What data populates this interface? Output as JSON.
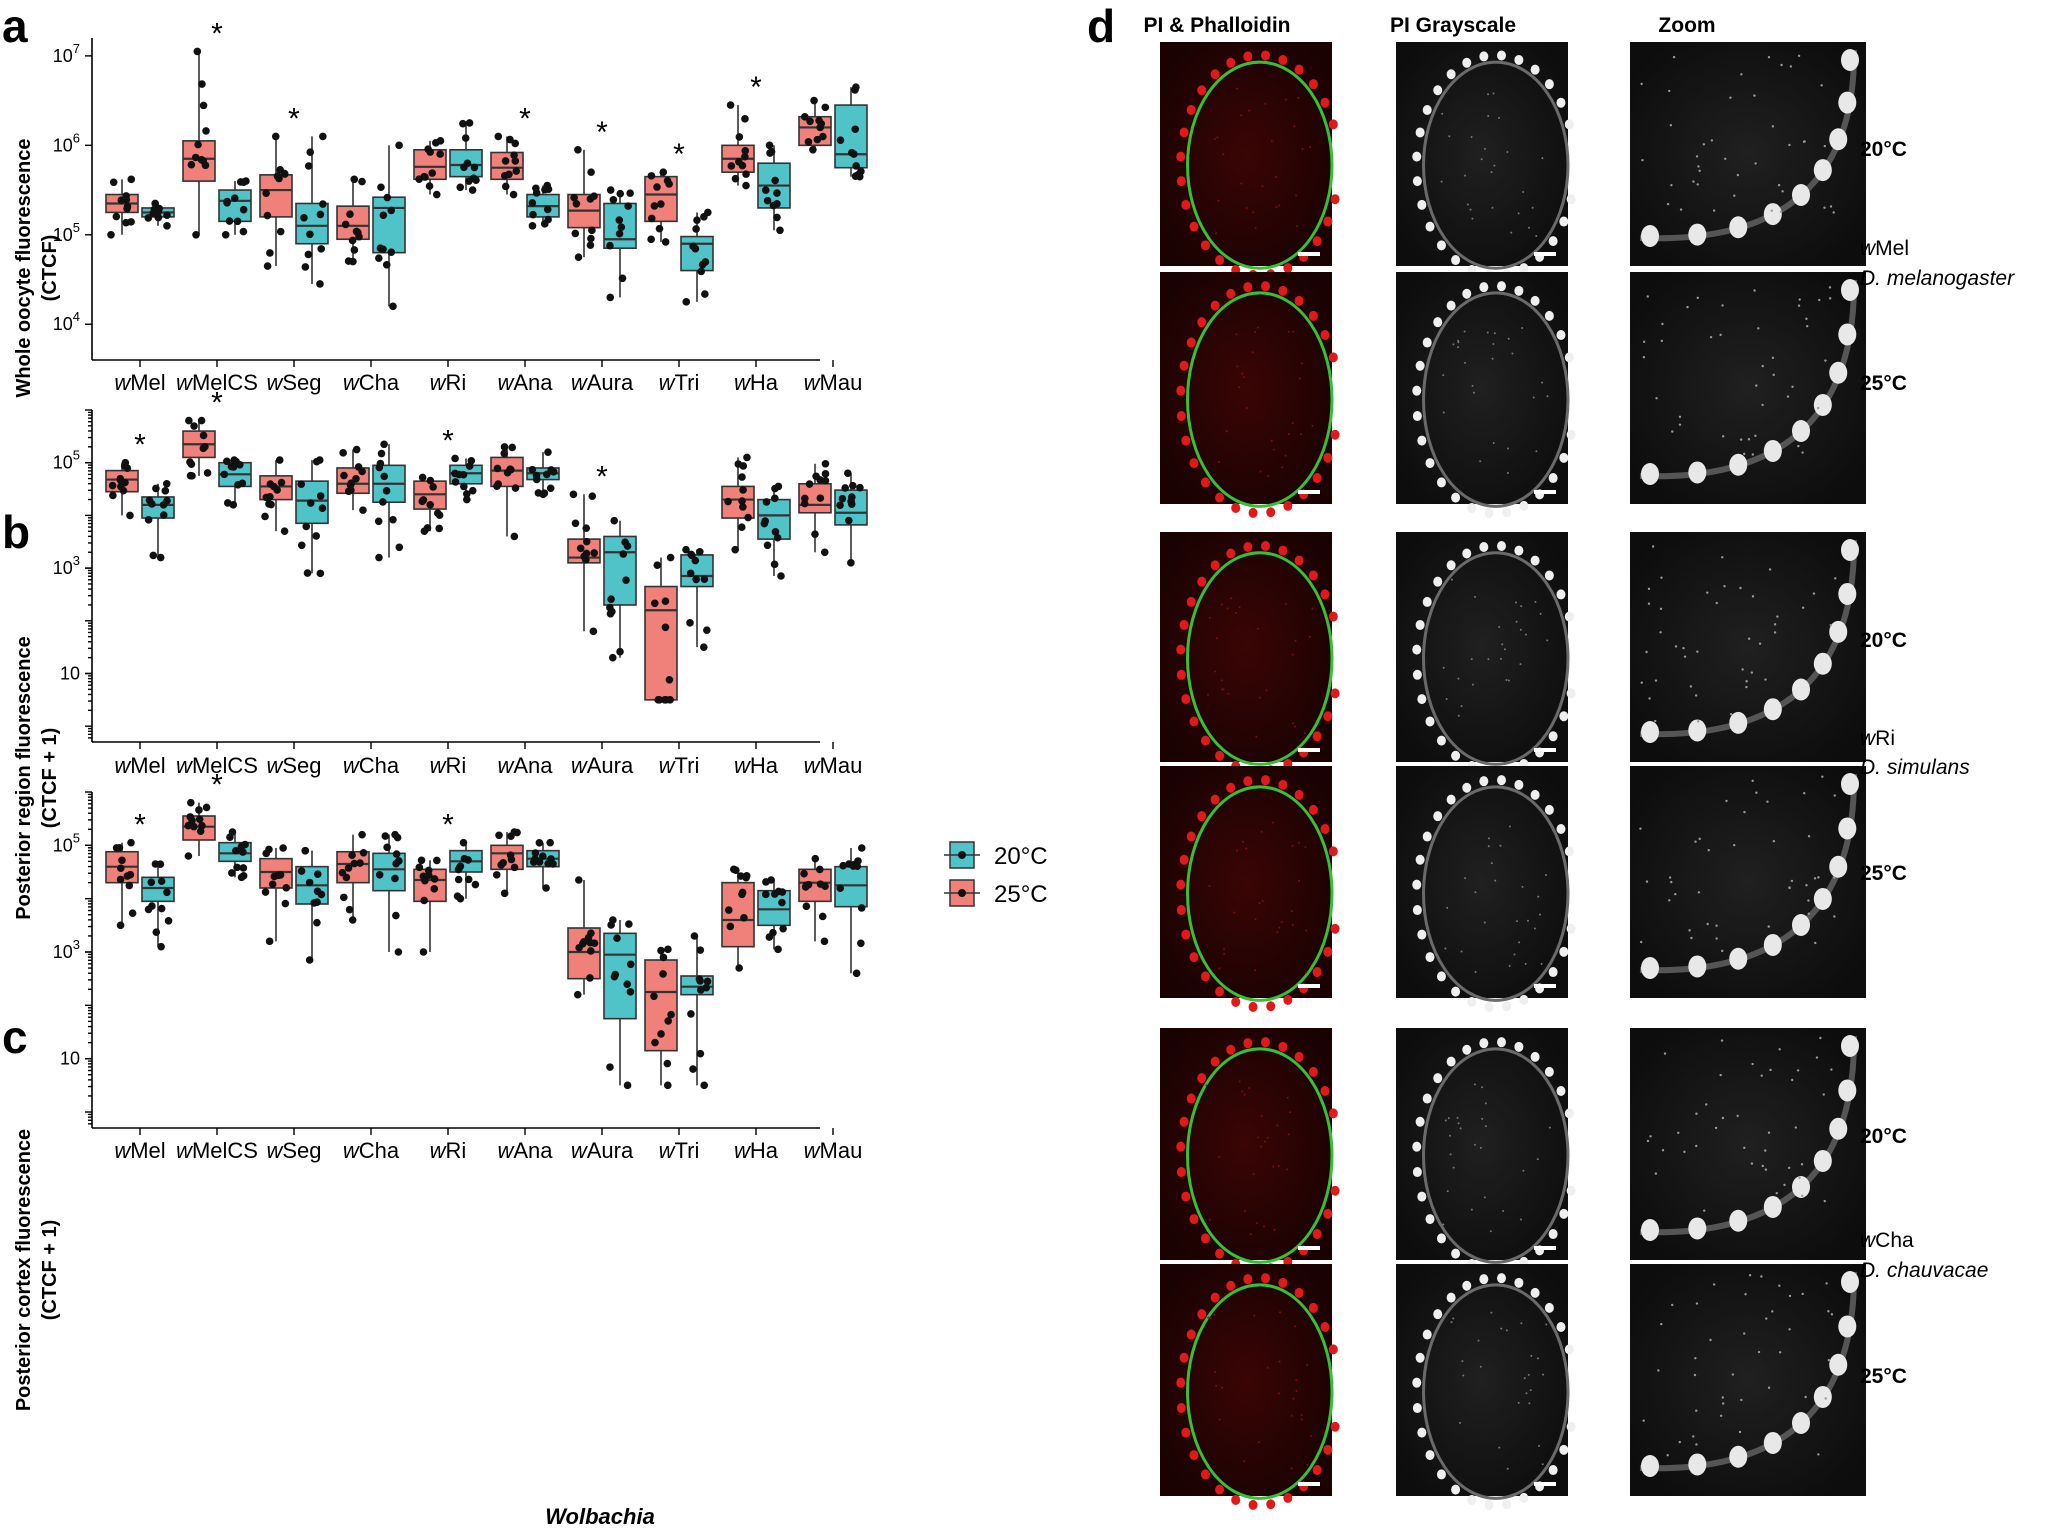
{
  "figure": {
    "colors": {
      "c20": "#4fc3c7",
      "c25": "#f0817a",
      "box_stroke": "#333333",
      "point": "#111111"
    },
    "x_axis_title": "Wolbachia",
    "legend": {
      "items": [
        {
          "label": "20°C",
          "color": "#4fc3c7"
        },
        {
          "label": "25°C",
          "color": "#f0817a"
        }
      ]
    }
  },
  "chart_data": [
    {
      "panel": "a",
      "type": "box",
      "ylabel_line1": "Whole oocyte fluorescence",
      "ylabel_line2": "(CTCF)",
      "yscale": "log",
      "ylim_log10": [
        3.6,
        7.2
      ],
      "ticks": [
        {
          "exp": 4,
          "base": "10",
          "sup": "4"
        },
        {
          "exp": 5,
          "base": "10",
          "sup": "5"
        },
        {
          "exp": 6,
          "base": "10",
          "sup": "6"
        },
        {
          "exp": 7,
          "base": "10",
          "sup": "7"
        }
      ],
      "minor_ticks": false,
      "categories": [
        {
          "prefix": "w",
          "name": "Mel",
          "significant": false
        },
        {
          "prefix": "w",
          "name": "MelCS",
          "significant": true
        },
        {
          "prefix": "w",
          "name": "Seg",
          "significant": true
        },
        {
          "prefix": "w",
          "name": "Cha",
          "significant": false
        },
        {
          "prefix": "w",
          "name": "Ri",
          "significant": false
        },
        {
          "prefix": "w",
          "name": "Ana",
          "significant": true
        },
        {
          "prefix": "w",
          "name": "Aura",
          "significant": true
        },
        {
          "prefix": "w",
          "name": "Tri",
          "significant": true
        },
        {
          "prefix": "w",
          "name": "Ha",
          "significant": true
        },
        {
          "prefix": "w",
          "name": "Mau",
          "significant": false
        }
      ],
      "star": "*",
      "series": [
        {
          "name": "25°C",
          "boxes": [
            {
              "min": 5.0,
              "q1": 5.25,
              "med": 5.35,
              "q3": 5.45,
              "max": 5.62
            },
            {
              "min": 5.0,
              "q1": 5.6,
              "med": 5.85,
              "q3": 6.05,
              "max": 7.05
            },
            {
              "min": 4.65,
              "q1": 5.2,
              "med": 5.5,
              "q3": 5.67,
              "max": 6.1
            },
            {
              "min": 4.7,
              "q1": 4.95,
              "med": 5.1,
              "q3": 5.32,
              "max": 5.62
            },
            {
              "min": 5.45,
              "q1": 5.62,
              "med": 5.76,
              "q3": 5.95,
              "max": 6.05
            },
            {
              "min": 5.45,
              "q1": 5.62,
              "med": 5.75,
              "q3": 5.92,
              "max": 6.1
            },
            {
              "min": 4.75,
              "q1": 5.08,
              "med": 5.27,
              "q3": 5.45,
              "max": 5.95
            },
            {
              "min": 4.92,
              "q1": 5.15,
              "med": 5.45,
              "q3": 5.65,
              "max": 5.7
            },
            {
              "min": 5.55,
              "q1": 5.7,
              "med": 5.85,
              "q3": 6.0,
              "max": 6.45
            },
            {
              "min": 5.95,
              "q1": 6.0,
              "med": 6.2,
              "q3": 6.32,
              "max": 6.5
            }
          ]
        },
        {
          "name": "20°C",
          "boxes": [
            {
              "min": 5.1,
              "q1": 5.2,
              "med": 5.25,
              "q3": 5.3,
              "max": 5.35
            },
            {
              "min": 5.0,
              "q1": 5.15,
              "med": 5.38,
              "q3": 5.5,
              "max": 5.6
            },
            {
              "min": 4.45,
              "q1": 4.9,
              "med": 5.1,
              "q3": 5.35,
              "max": 6.1
            },
            {
              "min": 4.2,
              "q1": 4.8,
              "med": 5.3,
              "q3": 5.42,
              "max": 6.0
            },
            {
              "min": 5.5,
              "q1": 5.65,
              "med": 5.78,
              "q3": 5.95,
              "max": 6.25
            },
            {
              "min": 5.1,
              "q1": 5.2,
              "med": 5.32,
              "q3": 5.45,
              "max": 5.55
            },
            {
              "min": 4.3,
              "q1": 4.85,
              "med": 4.95,
              "q3": 5.35,
              "max": 5.5
            },
            {
              "min": 4.25,
              "q1": 4.6,
              "med": 4.9,
              "q3": 4.98,
              "max": 5.25
            },
            {
              "min": 5.05,
              "q1": 5.3,
              "med": 5.55,
              "q3": 5.8,
              "max": 6.0
            },
            {
              "min": 5.65,
              "q1": 5.75,
              "med": 5.9,
              "q3": 6.45,
              "max": 6.65
            }
          ]
        }
      ]
    },
    {
      "panel": "b",
      "type": "box",
      "ylabel_line1": "Posterior region fluorescence",
      "ylabel_line2": "(CTCF + 1)",
      "yscale": "log",
      "ylim_log10": [
        -0.3,
        6.0
      ],
      "ticks": [
        {
          "exp": 1,
          "base": "10",
          "sup": ""
        },
        {
          "exp": 3,
          "base": "10",
          "sup": "3"
        },
        {
          "exp": 5,
          "base": "10",
          "sup": "5"
        }
      ],
      "minor_ticks": true,
      "categories": [
        {
          "prefix": "w",
          "name": "Mel",
          "significant": true
        },
        {
          "prefix": "w",
          "name": "MelCS",
          "significant": true
        },
        {
          "prefix": "w",
          "name": "Seg",
          "significant": false
        },
        {
          "prefix": "w",
          "name": "Cha",
          "significant": false
        },
        {
          "prefix": "w",
          "name": "Ri",
          "significant": true
        },
        {
          "prefix": "w",
          "name": "Ana",
          "significant": false
        },
        {
          "prefix": "w",
          "name": "Aura",
          "significant": true
        },
        {
          "prefix": "w",
          "name": "Tri",
          "significant": false
        },
        {
          "prefix": "w",
          "name": "Ha",
          "significant": false
        },
        {
          "prefix": "w",
          "name": "Mau",
          "significant": false
        }
      ],
      "star": "*",
      "series": [
        {
          "name": "25°C",
          "boxes": [
            {
              "min": 4.0,
              "q1": 4.45,
              "med": 4.68,
              "q3": 4.85,
              "max": 5.0
            },
            {
              "min": 4.75,
              "q1": 5.1,
              "med": 5.35,
              "q3": 5.6,
              "max": 5.8
            },
            {
              "min": 3.7,
              "q1": 4.3,
              "med": 4.55,
              "q3": 4.75,
              "max": 5.05
            },
            {
              "min": 4.1,
              "q1": 4.42,
              "med": 4.6,
              "q3": 4.9,
              "max": 5.25
            },
            {
              "min": 3.7,
              "q1": 4.12,
              "med": 4.4,
              "q3": 4.65,
              "max": 4.72
            },
            {
              "min": 3.6,
              "q1": 4.55,
              "med": 4.85,
              "q3": 5.1,
              "max": 5.3
            },
            {
              "min": 1.8,
              "q1": 3.1,
              "med": 3.2,
              "q3": 3.55,
              "max": 4.4
            },
            {
              "min": 0.5,
              "q1": 0.5,
              "med": 2.2,
              "q3": 2.65,
              "max": 3.2
            },
            {
              "min": 3.35,
              "q1": 3.95,
              "med": 4.3,
              "q3": 4.55,
              "max": 5.1
            },
            {
              "min": 3.3,
              "q1": 4.05,
              "med": 4.2,
              "q3": 4.6,
              "max": 4.98
            }
          ]
        },
        {
          "name": "20°C",
          "boxes": [
            {
              "min": 3.2,
              "q1": 3.95,
              "med": 4.2,
              "q3": 4.35,
              "max": 4.6
            },
            {
              "min": 4.2,
              "q1": 4.55,
              "med": 4.78,
              "q3": 5.0,
              "max": 5.05
            },
            {
              "min": 2.9,
              "q1": 3.85,
              "med": 4.28,
              "q3": 4.65,
              "max": 5.05
            },
            {
              "min": 3.2,
              "q1": 4.25,
              "med": 4.6,
              "q3": 4.95,
              "max": 5.35
            },
            {
              "min": 4.3,
              "q1": 4.6,
              "med": 4.8,
              "q3": 4.95,
              "max": 5.08
            },
            {
              "min": 4.4,
              "q1": 4.68,
              "med": 4.8,
              "q3": 4.9,
              "max": 5.2
            },
            {
              "min": 1.3,
              "q1": 2.3,
              "med": 3.3,
              "q3": 3.6,
              "max": 3.9
            },
            {
              "min": 1.5,
              "q1": 2.65,
              "med": 2.85,
              "q3": 3.25,
              "max": 3.35
            },
            {
              "min": 2.85,
              "q1": 3.55,
              "med": 4.0,
              "q3": 4.3,
              "max": 4.55
            },
            {
              "min": 3.1,
              "q1": 3.82,
              "med": 4.05,
              "q3": 4.48,
              "max": 4.8
            }
          ]
        }
      ]
    },
    {
      "panel": "c",
      "type": "box",
      "ylabel_line1": "Posterior cortex fluorescence",
      "ylabel_line2": "(CTCF + 1)",
      "yscale": "log",
      "ylim_log10": [
        -0.3,
        6.0
      ],
      "ticks": [
        {
          "exp": 1,
          "base": "10",
          "sup": ""
        },
        {
          "exp": 3,
          "base": "10",
          "sup": "3"
        },
        {
          "exp": 5,
          "base": "10",
          "sup": "5"
        }
      ],
      "minor_ticks": true,
      "categories": [
        {
          "prefix": "w",
          "name": "Mel",
          "significant": true
        },
        {
          "prefix": "w",
          "name": "MelCS",
          "significant": true
        },
        {
          "prefix": "w",
          "name": "Seg",
          "significant": false
        },
        {
          "prefix": "w",
          "name": "Cha",
          "significant": false
        },
        {
          "prefix": "w",
          "name": "Ri",
          "significant": true
        },
        {
          "prefix": "w",
          "name": "Ana",
          "significant": false
        },
        {
          "prefix": "w",
          "name": "Aura",
          "significant": false
        },
        {
          "prefix": "w",
          "name": "Tri",
          "significant": false
        },
        {
          "prefix": "w",
          "name": "Ha",
          "significant": false
        },
        {
          "prefix": "w",
          "name": "Mau",
          "significant": false
        }
      ],
      "star": "*",
      "series": [
        {
          "name": "25°C",
          "boxes": [
            {
              "min": 3.5,
              "q1": 4.3,
              "med": 4.6,
              "q3": 4.88,
              "max": 5.05
            },
            {
              "min": 4.8,
              "q1": 5.1,
              "med": 5.35,
              "q3": 5.55,
              "max": 5.8
            },
            {
              "min": 3.2,
              "q1": 4.2,
              "med": 4.5,
              "q3": 4.75,
              "max": 4.95
            },
            {
              "min": 3.6,
              "q1": 4.3,
              "med": 4.65,
              "q3": 4.88,
              "max": 5.2
            },
            {
              "min": 3.0,
              "q1": 3.95,
              "med": 4.35,
              "q3": 4.55,
              "max": 4.72
            },
            {
              "min": 4.1,
              "q1": 4.55,
              "med": 4.85,
              "q3": 5.0,
              "max": 5.25
            },
            {
              "min": 2.2,
              "q1": 2.5,
              "med": 3.0,
              "q3": 3.45,
              "max": 4.35
            },
            {
              "min": 0.5,
              "q1": 1.15,
              "med": 2.25,
              "q3": 2.85,
              "max": 3.05
            },
            {
              "min": 2.7,
              "q1": 3.1,
              "med": 3.6,
              "q3": 4.3,
              "max": 4.55
            },
            {
              "min": 3.2,
              "q1": 3.95,
              "med": 4.3,
              "q3": 4.55,
              "max": 4.75
            }
          ]
        },
        {
          "name": "20°C",
          "boxes": [
            {
              "min": 3.1,
              "q1": 3.95,
              "med": 4.2,
              "q3": 4.4,
              "max": 4.65
            },
            {
              "min": 4.4,
              "q1": 4.7,
              "med": 4.85,
              "q3": 5.05,
              "max": 5.25
            },
            {
              "min": 2.85,
              "q1": 3.9,
              "med": 4.25,
              "q3": 4.6,
              "max": 4.9
            },
            {
              "min": 3.0,
              "q1": 4.15,
              "med": 4.55,
              "q3": 4.85,
              "max": 5.2
            },
            {
              "min": 4.0,
              "q1": 4.5,
              "med": 4.7,
              "q3": 4.9,
              "max": 5.05
            },
            {
              "min": 4.2,
              "q1": 4.6,
              "med": 4.75,
              "q3": 4.9,
              "max": 5.05
            },
            {
              "min": 0.5,
              "q1": 1.75,
              "med": 2.95,
              "q3": 3.35,
              "max": 3.6
            },
            {
              "min": 0.5,
              "q1": 2.2,
              "med": 2.35,
              "q3": 2.55,
              "max": 3.3
            },
            {
              "min": 3.05,
              "q1": 3.5,
              "med": 3.8,
              "q3": 4.15,
              "max": 4.35
            },
            {
              "min": 2.6,
              "q1": 3.85,
              "med": 4.25,
              "q3": 4.6,
              "max": 4.95
            }
          ]
        }
      ]
    }
  ],
  "microscopy": {
    "column_headers": [
      "PI & Phalloidin",
      "PI Grayscale",
      "Zoom"
    ],
    "groups": [
      {
        "strain_prefix": "w",
        "strain_name": "Mel",
        "species": "D. melanogaster",
        "temps": [
          "20°C",
          "25°C"
        ]
      },
      {
        "strain_prefix": "w",
        "strain_name": "Ri",
        "species": "D. simulans",
        "temps": [
          "20°C",
          "25°C"
        ]
      },
      {
        "strain_prefix": "w",
        "strain_name": "Cha",
        "species": "D. chauvacae",
        "temps": [
          "20°C",
          "25°C"
        ]
      }
    ]
  },
  "panel_letters": {
    "a": "a",
    "b": "b",
    "c": "c",
    "d": "d"
  }
}
